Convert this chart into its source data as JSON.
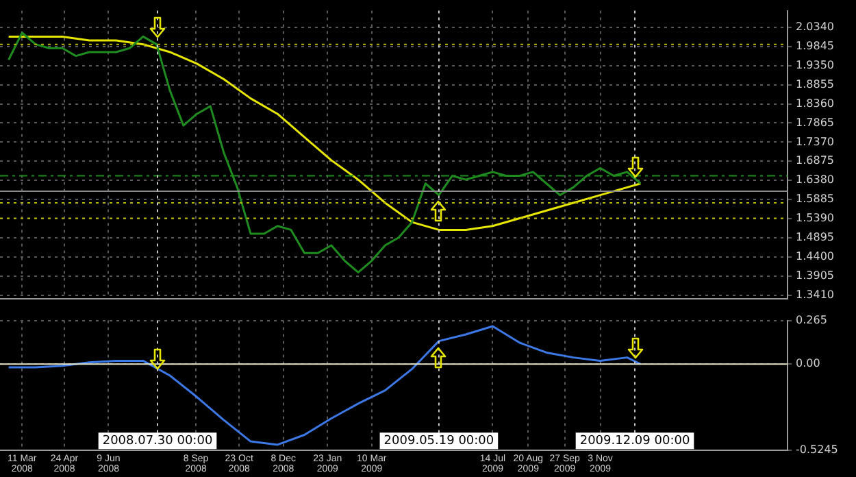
{
  "chart_data": [
    {
      "type": "line",
      "xlim": [
        "2008-02-17",
        "2010-05-17"
      ],
      "ylim": [
        1.331,
        2.077
      ],
      "tick_labels": "y",
      "grid": true,
      "legend": false,
      "marker": "none",
      "xticks": [
        {
          "value": "2008-03-11",
          "label": null
        },
        {
          "value": "2008-04-24",
          "label": null
        },
        {
          "value": "2008-06-09",
          "label": null
        },
        {
          "value": "2008-09-08",
          "label": null
        },
        {
          "value": "2008-10-23",
          "label": null
        },
        {
          "value": "2008-12-08",
          "label": null
        },
        {
          "value": "2009-01-23",
          "label": null
        },
        {
          "value": "2009-03-10",
          "label": null
        },
        {
          "value": "2009-07-14",
          "label": null
        },
        {
          "value": "2009-08-20",
          "label": null
        },
        {
          "value": "2009-09-27",
          "label": null
        },
        {
          "value": "2009-11-03",
          "label": null
        }
      ],
      "yticks": [
        {
          "value": 2.034,
          "label": "2.0340"
        },
        {
          "value": 1.9845,
          "label": "1.9845"
        },
        {
          "value": 1.935,
          "label": "1.9350"
        },
        {
          "value": 1.8855,
          "label": "1.8855"
        },
        {
          "value": 1.836,
          "label": "1.8360"
        },
        {
          "value": 1.7865,
          "label": "1.7865"
        },
        {
          "value": 1.737,
          "label": "1.7370"
        },
        {
          "value": 1.6875,
          "label": "1.6875"
        },
        {
          "value": 1.638,
          "label": "1.6380"
        },
        {
          "value": 1.5885,
          "label": "1.5885"
        },
        {
          "value": 1.539,
          "label": "1.5390"
        },
        {
          "value": 1.4895,
          "label": "1.4895"
        },
        {
          "value": 1.44,
          "label": "1.4400"
        },
        {
          "value": 1.3905,
          "label": "1.3905"
        },
        {
          "value": 1.341,
          "label": "1.3410"
        }
      ],
      "series": [
        {
          "color": "#1e8c1e",
          "x": [
            "2008-02-26",
            "2008-03-11",
            "2008-03-25",
            "2008-04-08",
            "2008-04-22",
            "2008-05-06",
            "2008-05-20",
            "2008-06-03",
            "2008-06-17",
            "2008-07-01",
            "2008-07-15",
            "2008-07-29",
            "2008-08-12",
            "2008-08-26",
            "2008-09-09",
            "2008-09-23",
            "2008-10-07",
            "2008-10-21",
            "2008-11-04",
            "2008-11-18",
            "2008-12-02",
            "2008-12-16",
            "2008-12-30",
            "2009-01-13",
            "2009-01-27",
            "2009-02-10",
            "2009-02-24",
            "2009-03-10",
            "2009-03-24",
            "2009-04-07",
            "2009-04-21",
            "2009-05-05",
            "2009-05-19",
            "2009-06-02",
            "2009-06-16",
            "2009-06-30",
            "2009-07-14",
            "2009-07-28",
            "2009-08-11",
            "2009-08-25",
            "2009-09-08",
            "2009-09-22",
            "2009-10-06",
            "2009-10-20",
            "2009-11-03",
            "2009-11-17",
            "2009-12-01",
            "2009-12-15"
          ],
          "values": [
            1.95,
            2.02,
            1.99,
            1.98,
            1.98,
            1.96,
            1.97,
            1.97,
            1.97,
            1.98,
            2.01,
            1.99,
            1.87,
            1.78,
            1.81,
            1.83,
            1.71,
            1.62,
            1.5,
            1.5,
            1.52,
            1.51,
            1.45,
            1.45,
            1.47,
            1.43,
            1.4,
            1.43,
            1.47,
            1.49,
            1.53,
            1.63,
            1.6,
            1.65,
            1.64,
            1.65,
            1.66,
            1.65,
            1.65,
            1.66,
            1.63,
            1.6,
            1.62,
            1.65,
            1.67,
            1.65,
            1.66,
            1.63
          ]
        },
        {
          "color": "#e6e600",
          "x": [
            "2008-02-26",
            "2008-03-25",
            "2008-04-22",
            "2008-05-20",
            "2008-06-17",
            "2008-07-15",
            "2008-08-12",
            "2008-09-09",
            "2008-10-07",
            "2008-11-04",
            "2008-12-02",
            "2008-12-30",
            "2009-01-27",
            "2009-02-24",
            "2009-03-24",
            "2009-04-21",
            "2009-05-19",
            "2009-06-16",
            "2009-07-14",
            "2009-08-11",
            "2009-09-08",
            "2009-10-06",
            "2009-11-03",
            "2009-12-01",
            "2009-12-15"
          ],
          "values": [
            2.01,
            2.01,
            2.01,
            2.0,
            2.0,
            1.99,
            1.97,
            1.94,
            1.9,
            1.85,
            1.81,
            1.75,
            1.69,
            1.64,
            1.58,
            1.53,
            1.51,
            1.51,
            1.52,
            1.54,
            1.56,
            1.58,
            1.6,
            1.62,
            1.63
          ]
        }
      ],
      "ref_lines": [
        {
          "axis": "y",
          "value": 1.99,
          "color": "#b8b800",
          "line_style": "dotted"
        },
        {
          "axis": "y",
          "value": 1.65,
          "color": "#1e8c1e",
          "line_style": "dashed"
        },
        {
          "axis": "y",
          "value": 1.61,
          "color": "#8a8a8a",
          "line_style": "solid"
        },
        {
          "axis": "y",
          "value": 1.58,
          "color": "#b8b800",
          "line_style": "dotted"
        },
        {
          "axis": "y",
          "value": 1.54,
          "color": "#b8b800",
          "line_style": "dotted"
        },
        {
          "axis": "x",
          "value": "2008-07-30",
          "color": "#c8c8c8",
          "line_style": "dotted"
        },
        {
          "axis": "x",
          "value": "2009-05-19",
          "color": "#c8c8c8",
          "line_style": "dotted"
        },
        {
          "axis": "x",
          "value": "2009-12-09",
          "color": "#c8c8c8",
          "line_style": "dotted"
        }
      ]
    },
    {
      "type": "line",
      "xlim": [
        "2008-02-17",
        "2010-05-17"
      ],
      "ylim": [
        -0.5245,
        0.265
      ],
      "grid": true,
      "legend": false,
      "marker": "none",
      "xticks": [
        {
          "value": "2008-03-11",
          "label": "11 Mar 2008"
        },
        {
          "value": "2008-04-24",
          "label": "24 Apr 2008"
        },
        {
          "value": "2008-06-09",
          "label": "9 Jun 2008"
        },
        {
          "value": "2008-09-08",
          "label": "8 Sep 2008"
        },
        {
          "value": "2008-10-23",
          "label": "23 Oct 2008"
        },
        {
          "value": "2008-12-08",
          "label": "8 Dec 2008"
        },
        {
          "value": "2009-01-23",
          "label": "23 Jan 2009"
        },
        {
          "value": "2009-03-10",
          "label": "10 Mar 2009"
        },
        {
          "value": "2009-07-14",
          "label": "14 Jul 2009"
        },
        {
          "value": "2009-08-20",
          "label": "20 Aug 2009"
        },
        {
          "value": "2009-09-27",
          "label": "27 Sep 2009"
        },
        {
          "value": "2009-11-03",
          "label": "3 Nov 2009"
        }
      ],
      "yticks": [
        0.265,
        {
          "value": 0,
          "label": "0.00"
        },
        -0.5245
      ],
      "series": [
        {
          "color": "#3c78e6",
          "x": [
            "2008-02-26",
            "2008-03-25",
            "2008-04-22",
            "2008-05-20",
            "2008-06-17",
            "2008-07-15",
            "2008-08-12",
            "2008-09-09",
            "2008-10-07",
            "2008-11-04",
            "2008-12-02",
            "2008-12-30",
            "2009-01-27",
            "2009-02-24",
            "2009-03-24",
            "2009-04-21",
            "2009-05-19",
            "2009-06-16",
            "2009-07-14",
            "2009-08-11",
            "2009-09-08",
            "2009-10-06",
            "2009-11-03",
            "2009-12-01",
            "2009-12-15"
          ],
          "values": [
            -0.02,
            -0.02,
            -0.01,
            0.01,
            0.02,
            0.02,
            -0.07,
            -0.2,
            -0.34,
            -0.47,
            -0.49,
            -0.43,
            -0.33,
            -0.24,
            -0.16,
            -0.03,
            0.14,
            0.18,
            0.23,
            0.13,
            0.07,
            0.04,
            0.02,
            0.04,
            0.0
          ]
        }
      ],
      "ref_lines": [
        {
          "axis": "y",
          "value": 0,
          "color": "#e8e8c8",
          "line_style": "solid"
        },
        {
          "axis": "x",
          "value": "2008-07-30",
          "label": "2008.07.30 00:00",
          "color": "#c8c8c8",
          "line_style": "dotted"
        },
        {
          "axis": "x",
          "value": "2009-05-19",
          "label": "2009.05.19 00:00",
          "color": "#c8c8c8",
          "line_style": "dotted"
        },
        {
          "axis": "x",
          "value": "2009-12-09",
          "label": "2009.12.09 00:00",
          "color": "#c8c8c8",
          "line_style": "dotted"
        }
      ]
    }
  ]
}
